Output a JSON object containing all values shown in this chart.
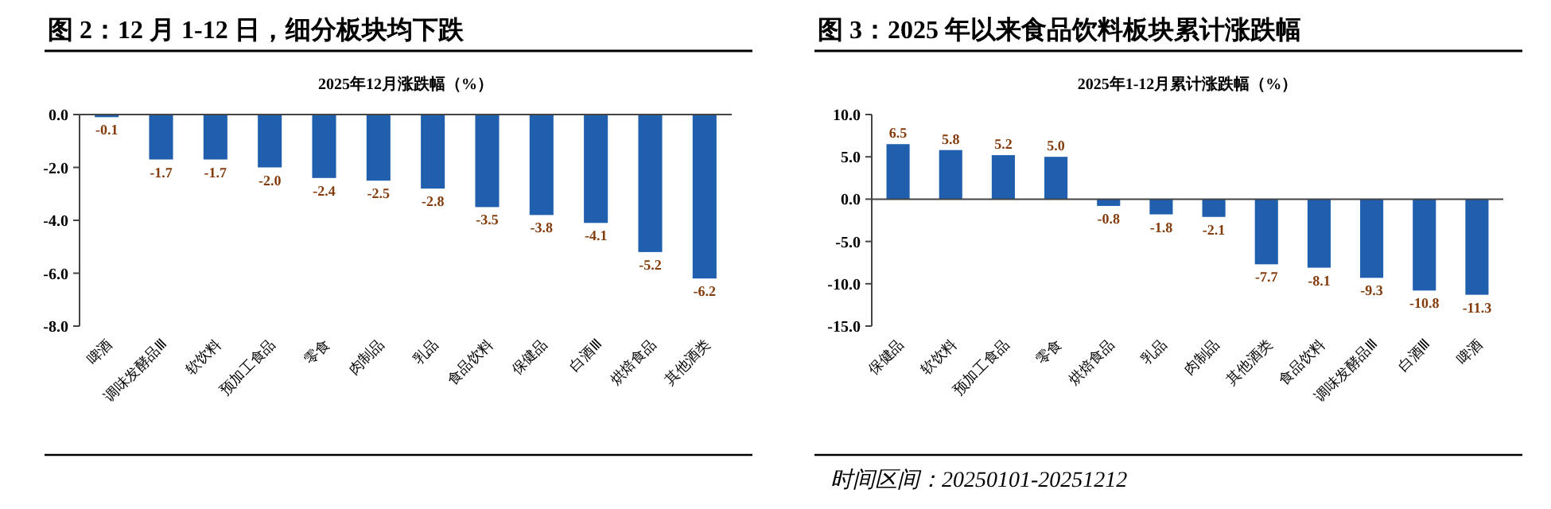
{
  "chart_data": [
    {
      "type": "bar",
      "title": "图 2：12 月 1-12 日，细分板块均下跌",
      "subtitle": "2025年12月涨跌幅（%）",
      "categories": [
        "啤酒",
        "调味发酵品Ⅲ",
        "软饮料",
        "预加工食品",
        "零食",
        "肉制品",
        "乳品",
        "食品饮料",
        "保健品",
        "白酒Ⅲ",
        "烘焙食品",
        "其他酒类"
      ],
      "values": [
        -0.1,
        -1.7,
        -1.7,
        -2.0,
        -2.4,
        -2.5,
        -2.8,
        -3.5,
        -3.8,
        -4.1,
        -5.2,
        -6.2
      ],
      "color": "#1f5fae",
      "value_labels": [
        "-0.1",
        "-1.7",
        "-1.7",
        "-2.0",
        "-2.4",
        "-2.5",
        "-2.8",
        "-3.5",
        "-3.8",
        "-4.1",
        "-5.2",
        "-6.2"
      ],
      "ylim": [
        -8,
        0
      ],
      "yticks": [
        {
          "value": 0,
          "label": "0.0"
        },
        {
          "value": -2,
          "label": "-2.0"
        },
        {
          "value": -4,
          "label": "-4.0"
        },
        {
          "value": -6,
          "label": "-6.0"
        },
        {
          "value": -8,
          "label": "-8.0"
        }
      ]
    },
    {
      "type": "bar",
      "title": "图 3：2025 年以来食品饮料板块累计涨跌幅",
      "subtitle": "2025年1-12月累计涨跌幅（%）",
      "categories": [
        "保健品",
        "软饮料",
        "预加工食品",
        "零食",
        "烘焙食品",
        "乳品",
        "肉制品",
        "其他酒类",
        "食品饮料",
        "调味发酵品Ⅲ",
        "白酒Ⅲ",
        "啤酒"
      ],
      "values": [
        6.5,
        5.8,
        5.2,
        5.0,
        -0.8,
        -1.8,
        -2.1,
        -7.7,
        -8.1,
        -9.3,
        -10.8,
        -11.3
      ],
      "color": "#1f5fae",
      "value_labels": [
        "6.5",
        "5.8",
        "5.2",
        "5.0",
        "-0.8",
        "-1.8",
        "-2.1",
        "-7.7",
        "-8.1",
        "-9.3",
        "-10.8",
        "-11.3"
      ],
      "ylim": [
        -15,
        10
      ],
      "yticks": [
        {
          "value": 10,
          "label": "10.0"
        },
        {
          "value": 5,
          "label": "5.0"
        },
        {
          "value": 0,
          "label": "0.0"
        },
        {
          "value": -5,
          "label": "-5.0"
        },
        {
          "value": -10,
          "label": "-10.0"
        },
        {
          "value": -15,
          "label": "-15.0"
        }
      ],
      "annotations": [
        "时间区间：20250101-20251212"
      ]
    }
  ]
}
